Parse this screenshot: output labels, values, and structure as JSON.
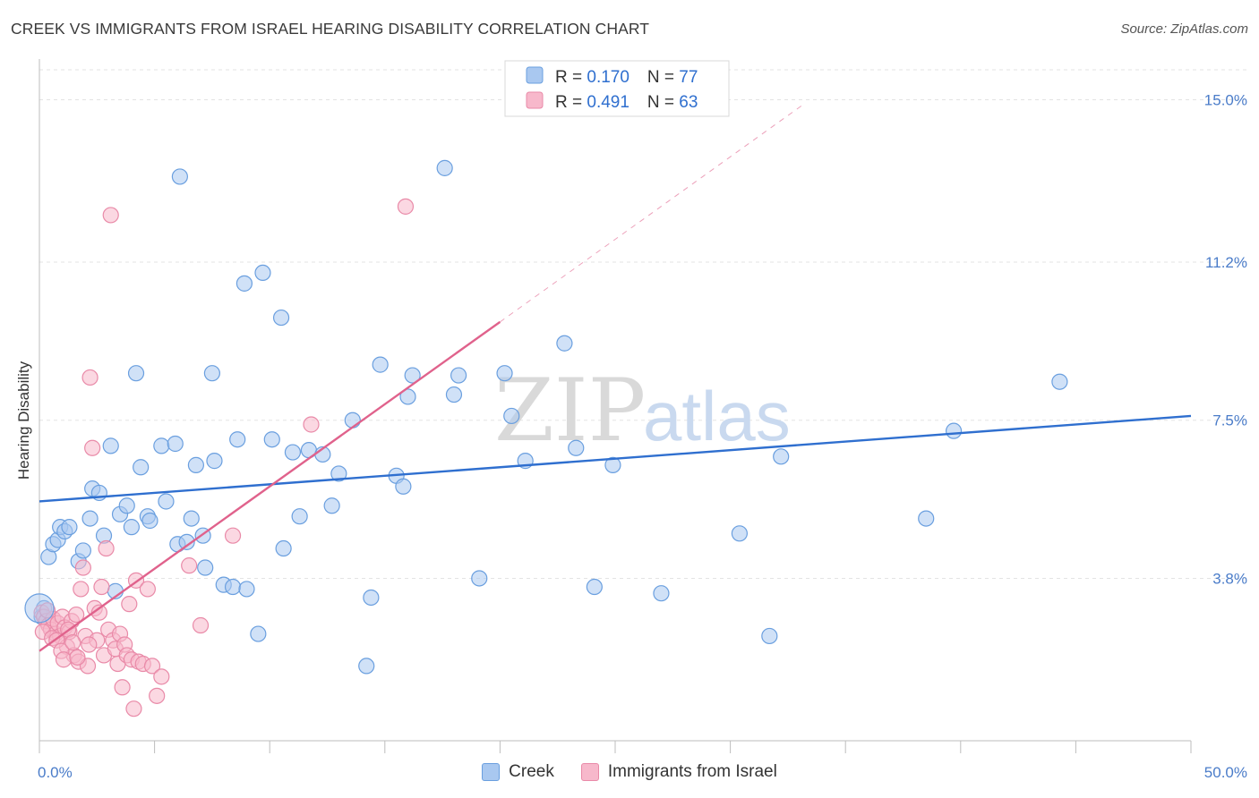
{
  "header": {
    "title": "CREEK VS IMMIGRANTS FROM ISRAEL HEARING DISABILITY CORRELATION CHART",
    "source": "Source: ZipAtlas.com"
  },
  "watermark": {
    "part1": "ZIP",
    "part2": "atlas"
  },
  "colors": {
    "creek_fill": "#a9c8f0",
    "creek_stroke": "#6a9fdf",
    "creek_line": "#2f6fcf",
    "israel_fill": "#f7b8cb",
    "israel_stroke": "#e98aa8",
    "israel_line": "#e0628c",
    "tick_text": "#4a7cc9",
    "grid": "#e3e3e3"
  },
  "legend": {
    "rows": [
      {
        "r_label": "R = ",
        "r_value": "0.170",
        "n_label": "N = ",
        "n_value": "77"
      },
      {
        "r_label": "R = ",
        "r_value": "0.491",
        "n_label": "N = ",
        "n_value": "63"
      }
    ]
  },
  "chart_data": {
    "type": "scatter",
    "title": "CREEK VS IMMIGRANTS FROM ISRAEL HEARING DISABILITY CORRELATION CHART",
    "xlabel": "",
    "ylabel": "Hearing Disability",
    "xlim": [
      0,
      50
    ],
    "ylim": [
      0,
      15.7
    ],
    "x_tick_labels": [
      "0.0%",
      "50.0%"
    ],
    "y_ticks": [
      {
        "value": 3.8,
        "label": "3.8%"
      },
      {
        "value": 7.5,
        "label": "7.5%"
      },
      {
        "value": 11.2,
        "label": "11.2%"
      },
      {
        "value": 15.0,
        "label": "15.0%"
      }
    ],
    "legend_position": "top-center",
    "series": [
      {
        "name": "Creek",
        "r": 0.17,
        "n": 77,
        "trend": {
          "x0": 0,
          "y0": 5.6,
          "x1": 50,
          "y1": 7.6
        },
        "points": [
          [
            0.2,
            3.1
          ],
          [
            0.4,
            4.3
          ],
          [
            0.6,
            4.6
          ],
          [
            0.8,
            4.7
          ],
          [
            0.9,
            5.0
          ],
          [
            1.1,
            4.9
          ],
          [
            1.3,
            5.0
          ],
          [
            1.7,
            4.2
          ],
          [
            1.9,
            4.45
          ],
          [
            2.2,
            5.2
          ],
          [
            2.3,
            5.9
          ],
          [
            2.6,
            5.8
          ],
          [
            2.8,
            4.8
          ],
          [
            3.1,
            6.9
          ],
          [
            3.3,
            3.5
          ],
          [
            3.5,
            5.3
          ],
          [
            3.8,
            5.5
          ],
          [
            4.0,
            5.0
          ],
          [
            4.2,
            8.6
          ],
          [
            4.4,
            6.4
          ],
          [
            4.7,
            5.25
          ],
          [
            4.8,
            5.15
          ],
          [
            5.3,
            6.9
          ],
          [
            5.5,
            5.6
          ],
          [
            5.9,
            6.95
          ],
          [
            6.0,
            4.6
          ],
          [
            6.1,
            13.2
          ],
          [
            6.4,
            4.65
          ],
          [
            6.6,
            5.2
          ],
          [
            6.8,
            6.45
          ],
          [
            7.1,
            4.8
          ],
          [
            7.2,
            4.05
          ],
          [
            7.5,
            8.6
          ],
          [
            7.6,
            6.55
          ],
          [
            8.0,
            3.65
          ],
          [
            8.4,
            3.6
          ],
          [
            8.6,
            7.05
          ],
          [
            8.9,
            10.7
          ],
          [
            9.0,
            3.55
          ],
          [
            9.5,
            2.5
          ],
          [
            9.7,
            10.95
          ],
          [
            10.1,
            7.05
          ],
          [
            10.5,
            9.9
          ],
          [
            10.6,
            4.5
          ],
          [
            11.0,
            6.75
          ],
          [
            11.3,
            5.25
          ],
          [
            11.7,
            6.8
          ],
          [
            12.3,
            6.7
          ],
          [
            12.7,
            5.5
          ],
          [
            13.0,
            6.25
          ],
          [
            13.6,
            7.5
          ],
          [
            14.2,
            1.75
          ],
          [
            14.4,
            3.35
          ],
          [
            14.8,
            8.8
          ],
          [
            15.5,
            6.2
          ],
          [
            15.8,
            5.95
          ],
          [
            16.0,
            8.05
          ],
          [
            16.2,
            8.55
          ],
          [
            17.6,
            13.4
          ],
          [
            18.0,
            8.1
          ],
          [
            18.2,
            8.55
          ],
          [
            19.1,
            3.8
          ],
          [
            20.2,
            8.6
          ],
          [
            20.5,
            7.6
          ],
          [
            21.1,
            6.55
          ],
          [
            22.8,
            9.3
          ],
          [
            23.3,
            6.85
          ],
          [
            24.1,
            3.6
          ],
          [
            24.9,
            6.45
          ],
          [
            27.0,
            3.45
          ],
          [
            30.4,
            4.85
          ],
          [
            31.7,
            2.45
          ],
          [
            32.2,
            6.65
          ],
          [
            38.5,
            5.2
          ],
          [
            39.7,
            7.25
          ],
          [
            44.3,
            8.4
          ],
          [
            0.1,
            2.9
          ]
        ]
      },
      {
        "name": "Immigrants from Israel",
        "r": 0.491,
        "n": 63,
        "trend": {
          "x0": 0,
          "y0": 2.1,
          "x1": 20,
          "y1": 9.8
        },
        "trend_dashed": {
          "x0": 20,
          "y0": 9.8,
          "x1": 33.2,
          "y1": 14.9
        },
        "points": [
          [
            0.1,
            3.0
          ],
          [
            0.2,
            2.9
          ],
          [
            0.3,
            2.8
          ],
          [
            0.4,
            2.7
          ],
          [
            0.5,
            2.6
          ],
          [
            0.6,
            2.85
          ],
          [
            0.7,
            2.5
          ],
          [
            0.8,
            2.75
          ],
          [
            0.9,
            2.45
          ],
          [
            1.0,
            2.9
          ],
          [
            1.1,
            2.65
          ],
          [
            1.2,
            2.2
          ],
          [
            1.3,
            2.55
          ],
          [
            1.4,
            2.8
          ],
          [
            1.5,
            2.0
          ],
          [
            1.6,
            2.95
          ],
          [
            1.7,
            1.85
          ],
          [
            1.8,
            3.55
          ],
          [
            1.9,
            4.05
          ],
          [
            2.0,
            2.45
          ],
          [
            2.1,
            1.75
          ],
          [
            2.2,
            8.5
          ],
          [
            2.3,
            6.85
          ],
          [
            2.4,
            3.1
          ],
          [
            2.5,
            2.35
          ],
          [
            2.6,
            3.0
          ],
          [
            2.7,
            3.6
          ],
          [
            2.8,
            2.0
          ],
          [
            2.9,
            4.5
          ],
          [
            3.0,
            2.6
          ],
          [
            3.1,
            12.3
          ],
          [
            3.2,
            2.35
          ],
          [
            3.3,
            2.15
          ],
          [
            3.4,
            1.8
          ],
          [
            3.5,
            2.5
          ],
          [
            3.6,
            1.25
          ],
          [
            3.7,
            2.25
          ],
          [
            3.8,
            2.0
          ],
          [
            3.9,
            3.2
          ],
          [
            4.0,
            1.9
          ],
          [
            4.1,
            0.75
          ],
          [
            4.2,
            3.75
          ],
          [
            4.3,
            1.85
          ],
          [
            4.5,
            1.8
          ],
          [
            4.7,
            3.55
          ],
          [
            4.9,
            1.75
          ],
          [
            5.1,
            1.05
          ],
          [
            5.3,
            1.5
          ],
          [
            6.5,
            4.1
          ],
          [
            7.0,
            2.7
          ],
          [
            8.4,
            4.8
          ],
          [
            11.8,
            7.4
          ],
          [
            15.9,
            12.5
          ],
          [
            0.15,
            2.55
          ],
          [
            0.35,
            3.05
          ],
          [
            0.55,
            2.4
          ],
          [
            0.75,
            2.35
          ],
          [
            0.95,
            2.1
          ],
          [
            1.05,
            1.9
          ],
          [
            1.25,
            2.6
          ],
          [
            1.45,
            2.3
          ],
          [
            1.65,
            1.95
          ],
          [
            2.15,
            2.25
          ]
        ]
      }
    ]
  }
}
